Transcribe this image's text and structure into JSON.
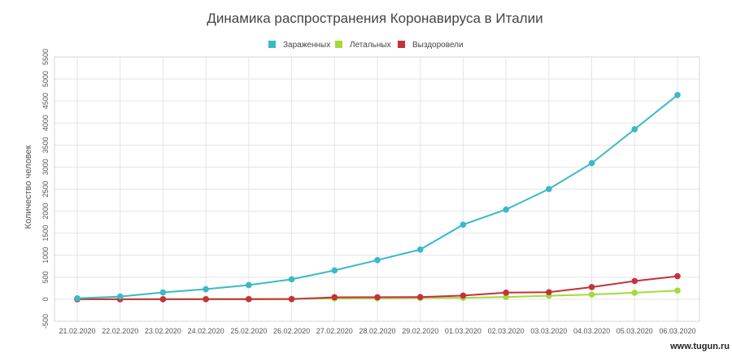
{
  "chart_data": {
    "type": "line",
    "title": "Динамика распространения Коронавируса в Италии",
    "ylabel": "Количество человек",
    "xlabel": "",
    "categories": [
      "21.02.2020",
      "22.02.2020",
      "23.02.2020",
      "24.02.2020",
      "25.02.2020",
      "26.02.2020",
      "27.02.2020",
      "28.02.2020",
      "29.02.2020",
      "01.03.2020",
      "02.03.2020",
      "03.03.2020",
      "04.03.2020",
      "05.03.2020",
      "06.03.2020"
    ],
    "ylim": [
      -500,
      5500
    ],
    "yticks": [
      -500,
      0,
      500,
      1000,
      1500,
      2000,
      2500,
      3000,
      3500,
      4000,
      4500,
      5000,
      5500
    ],
    "grid": true,
    "legend_position": "top-center",
    "series": [
      {
        "name": "Зараженных",
        "color": "#3ab9c8",
        "values": [
          20,
          62,
          155,
          229,
          322,
          453,
          655,
          888,
          1128,
          1694,
          2036,
          2502,
          3089,
          3858,
          4636
        ]
      },
      {
        "name": "Летальных",
        "color": "#a6d93b",
        "values": [
          1,
          2,
          3,
          7,
          10,
          12,
          17,
          21,
          29,
          34,
          52,
          79,
          107,
          148,
          197
        ]
      },
      {
        "name": "Выздоровели",
        "color": "#c4323b",
        "values": [
          0,
          0,
          0,
          1,
          1,
          3,
          45,
          46,
          50,
          83,
          149,
          160,
          276,
          414,
          523
        ]
      }
    ]
  },
  "watermark": "www.tugun.ru"
}
